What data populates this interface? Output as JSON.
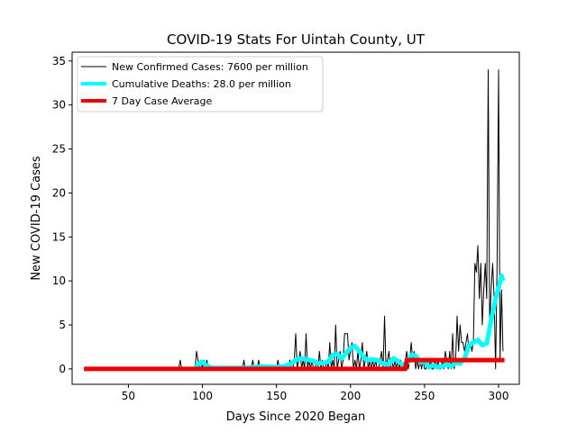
{
  "chart_data": {
    "type": "line",
    "title": "COVID-19 Stats For Uintah County, UT",
    "xlabel": "Days Since 2020 Began",
    "ylabel": "New COVID-19 Cases",
    "xlim": [
      12,
      314
    ],
    "ylim": [
      -1.75,
      36.0
    ],
    "x_ticks": [
      50,
      100,
      150,
      200,
      250,
      300
    ],
    "y_ticks": [
      0,
      5,
      10,
      15,
      20,
      25,
      30,
      35
    ],
    "grid": false,
    "legend": {
      "position": "top-left",
      "entries": [
        "New Confirmed Cases: 7600 per million",
        "Cumulative Deaths: 28.0 per million",
        "7 Day Case Average"
      ]
    },
    "colors": {
      "cases": "#000000",
      "deaths": "#00ffff",
      "average": "#ee0000"
    },
    "series": [
      {
        "name": "New Confirmed Cases: 7600 per million",
        "style": "thin-line",
        "x": [
          20,
          84,
          85,
          86,
          87,
          88,
          90,
          95,
          96,
          97,
          98,
          99,
          100,
          101,
          102,
          103,
          104,
          105,
          127,
          128,
          129,
          133,
          134,
          135,
          137,
          138,
          139,
          150,
          151,
          152,
          158,
          159,
          160,
          161,
          162,
          163,
          164,
          165,
          166,
          167,
          168,
          169,
          170,
          171,
          172,
          173,
          174,
          175,
          176,
          177,
          178,
          179,
          180,
          181,
          182,
          183,
          184,
          185,
          186,
          187,
          188,
          189,
          190,
          191,
          192,
          193,
          194,
          195,
          196,
          197,
          198,
          199,
          200,
          201,
          202,
          203,
          204,
          205,
          206,
          207,
          208,
          209,
          210,
          211,
          212,
          213,
          214,
          215,
          216,
          217,
          218,
          219,
          220,
          221,
          222,
          223,
          224,
          225,
          226,
          227,
          228,
          229,
          230,
          231,
          232,
          233,
          234,
          235,
          236,
          237,
          238,
          239,
          240,
          241,
          242,
          243,
          244,
          245,
          246,
          247,
          248,
          249,
          250,
          251,
          252,
          253,
          254,
          255,
          256,
          257,
          258,
          259,
          260,
          261,
          262,
          263,
          264,
          265,
          266,
          267,
          268,
          269,
          270,
          271,
          272,
          273,
          274,
          275,
          276,
          277,
          278,
          279,
          280,
          281,
          282,
          283,
          284,
          285,
          286,
          287,
          288,
          289,
          290,
          291,
          292,
          293,
          294,
          295,
          296,
          297,
          298,
          299,
          300,
          301,
          302,
          303
        ],
        "values": [
          0,
          0,
          1,
          0,
          0,
          0,
          0,
          0,
          2,
          1,
          0,
          1,
          0,
          1,
          0,
          1,
          0,
          0,
          0,
          1,
          0,
          0,
          1,
          0,
          0,
          1,
          0,
          0,
          1,
          0,
          0,
          1,
          0,
          0,
          1,
          4,
          0,
          1,
          2,
          0,
          1,
          0,
          4,
          0,
          1,
          0,
          1,
          0,
          0,
          1,
          0,
          2,
          0,
          1,
          0,
          0,
          1,
          0,
          3,
          0,
          1,
          0,
          5,
          0,
          1,
          2,
          0,
          1,
          4,
          4,
          4,
          1,
          2,
          3,
          0,
          1,
          0,
          2,
          0,
          1,
          3,
          0,
          1,
          2,
          0,
          1,
          0,
          1,
          0,
          1,
          0,
          0,
          1,
          2,
          0,
          6,
          0,
          1,
          2,
          0,
          1,
          0,
          1,
          0,
          1,
          0,
          1,
          0,
          0,
          1,
          2,
          0,
          1,
          3,
          1,
          2,
          0,
          1,
          0,
          1,
          0,
          1,
          0,
          0,
          1,
          0,
          1,
          0,
          0,
          1,
          0,
          1,
          0,
          0,
          1,
          0,
          2,
          1,
          0,
          2,
          0,
          4,
          0,
          1,
          6,
          2,
          5,
          3,
          3,
          2,
          3,
          4,
          2,
          3,
          2,
          3,
          12,
          11,
          14,
          8,
          12,
          5,
          9,
          12,
          8,
          34,
          5,
          9,
          12,
          8,
          0,
          12,
          34,
          1,
          9,
          2
        ],
        "_note": "values from x=84 onward are read off the plot; the first pair marks the start of the series at zero"
      },
      {
        "name": "Cumulative Deaths: 28.0 per million",
        "style": "thick-line",
        "x": [
          95,
          98,
          100,
          102,
          104,
          106,
          130,
          140,
          150,
          155,
          160,
          163,
          166,
          170,
          175,
          178,
          182,
          185,
          188,
          191,
          194,
          197,
          200,
          203,
          206,
          209,
          212,
          215,
          218,
          222,
          226,
          229,
          232,
          235,
          238,
          241,
          244,
          247,
          250,
          253,
          256,
          259,
          262,
          265,
          268,
          271,
          274,
          277,
          280,
          283,
          286,
          289,
          292,
          295,
          298,
          300,
          302,
          303
        ],
        "values": [
          0.2,
          0.6,
          0.8,
          0.5,
          0.3,
          0.1,
          0.1,
          0.3,
          0.2,
          0.3,
          0.6,
          1.0,
          1.2,
          1.1,
          0.9,
          0.6,
          0.7,
          0.8,
          1.6,
          1.7,
          1.2,
          1.8,
          2.4,
          2.6,
          2.0,
          1.3,
          1.0,
          1.1,
          1.0,
          0.6,
          0.5,
          1.2,
          0.9,
          0.5,
          0.6,
          1.6,
          1.5,
          0.8,
          0.8,
          0.2,
          0.4,
          0.2,
          0.3,
          0.5,
          0.3,
          0.7,
          0.6,
          1.2,
          2.7,
          3.0,
          3.3,
          2.7,
          2.9,
          5.6,
          8.0,
          9.2,
          10.6,
          10.0
        ]
      },
      {
        "name": "7 Day Case Average",
        "style": "thick-line",
        "x": [
          20,
          237,
          238,
          304
        ],
        "values": [
          0,
          0,
          1,
          1
        ]
      }
    ]
  }
}
